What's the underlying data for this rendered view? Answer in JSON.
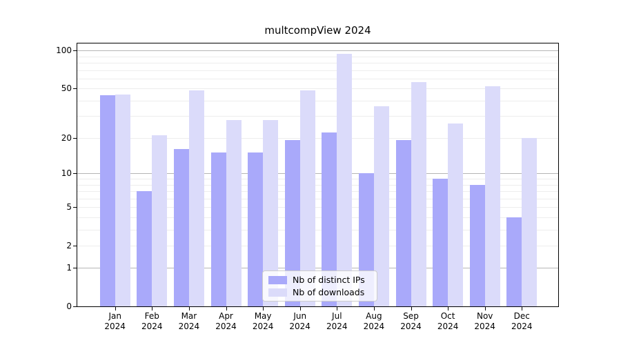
{
  "title": "multcompView 2024",
  "chart_data": {
    "type": "bar",
    "title": "multcompView 2024",
    "xlabel": "",
    "ylabel": "",
    "y_scale": "log1p",
    "ylim": [
      0,
      116
    ],
    "grid": "on",
    "legend_position": "bottom-center",
    "categories": [
      "Jan 2024",
      "Feb 2024",
      "Mar 2024",
      "Apr 2024",
      "May 2024",
      "Jun 2024",
      "Jul 2024",
      "Aug 2024",
      "Sep 2024",
      "Oct 2024",
      "Nov 2024",
      "Dec 2024"
    ],
    "y_ticks": [
      0,
      1,
      2,
      5,
      10,
      20,
      50,
      100
    ],
    "y_gridlines": [
      1,
      2,
      3,
      4,
      5,
      6,
      7,
      8,
      9,
      10,
      20,
      30,
      40,
      50,
      60,
      70,
      80,
      90,
      100
    ],
    "series": [
      {
        "name": "Nb of distinct IPs",
        "color": "#a9a9fa",
        "values": [
          44,
          7,
          16,
          15,
          15,
          19,
          22,
          10,
          19,
          9,
          8,
          4
        ]
      },
      {
        "name": "Nb of downloads",
        "color": "#dbdbfa",
        "values": [
          45,
          21,
          48,
          28,
          28,
          48,
          94,
          36,
          56,
          26,
          52,
          20
        ]
      }
    ],
    "colors": {
      "decade_gridline": "#b5b5b5",
      "minor_gridline": "#ededed",
      "axis": "#000000"
    }
  }
}
